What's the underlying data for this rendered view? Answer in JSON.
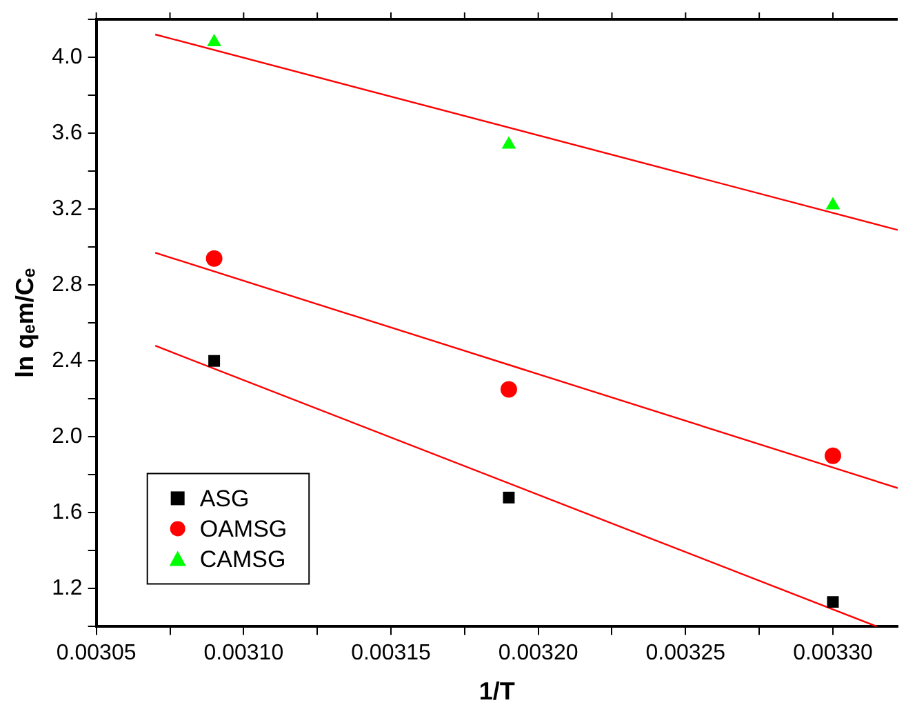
{
  "chart_data": {
    "type": "scatter",
    "xlabel": "1/T",
    "ylabel": "ln qₑm/Cₑ",
    "xlim": [
      0.00305,
      0.003322
    ],
    "xticks": [
      {
        "value": 0.00305,
        "label": "0.00305"
      },
      {
        "value": 0.003075,
        "label": null
      },
      {
        "value": 0.0031,
        "label": "0.00310"
      },
      {
        "value": 0.003125,
        "label": null
      },
      {
        "value": 0.00315,
        "label": "0.00315"
      },
      {
        "value": 0.003175,
        "label": null
      },
      {
        "value": 0.0032,
        "label": "0.00320"
      },
      {
        "value": 0.003225,
        "label": null
      },
      {
        "value": 0.00325,
        "label": "0.00325"
      },
      {
        "value": 0.003275,
        "label": null
      },
      {
        "value": 0.0033,
        "label": "0.00330"
      }
    ],
    "ylim": [
      1.0,
      4.2
    ],
    "yticks": [
      {
        "value": 1.0,
        "label": null
      },
      {
        "value": 1.2,
        "label": "1.2"
      },
      {
        "value": 1.4,
        "label": null
      },
      {
        "value": 1.6,
        "label": "1.6"
      },
      {
        "value": 1.8,
        "label": null
      },
      {
        "value": 2.0,
        "label": "2.0"
      },
      {
        "value": 2.2,
        "label": null
      },
      {
        "value": 2.4,
        "label": "2.4"
      },
      {
        "value": 2.6,
        "label": null
      },
      {
        "value": 2.8,
        "label": "2.8"
      },
      {
        "value": 3.0,
        "label": null
      },
      {
        "value": 3.2,
        "label": "3.2"
      },
      {
        "value": 3.4,
        "label": null
      },
      {
        "value": 3.6,
        "label": "3.6"
      },
      {
        "value": 3.8,
        "label": null
      },
      {
        "value": 4.0,
        "label": "4.0"
      },
      {
        "value": 4.2,
        "label": null
      }
    ],
    "grid": false,
    "legend": "bottom left",
    "series": [
      {
        "name": "ASG",
        "marker": "square",
        "color": "#000000",
        "x": [
          0.00309,
          0.00319,
          0.0033
        ],
        "values": [
          2.4,
          1.68,
          1.13
        ]
      },
      {
        "name": "OAMSG",
        "marker": "circle",
        "color": "#ff0000",
        "x": [
          0.00309,
          0.00319,
          0.0033
        ],
        "values": [
          2.94,
          2.25,
          1.9
        ]
      },
      {
        "name": "CAMSG",
        "marker": "triangle",
        "color": "#00ff00",
        "x": [
          0.00309,
          0.00319,
          0.0033
        ],
        "values": [
          4.08,
          3.54,
          3.22
        ]
      },
      {
        "type": "line",
        "marker": "none",
        "line_style": "solid",
        "color": "#ff0000",
        "x": [
          0.00307,
          0.003315
        ],
        "values": [
          2.48,
          1.0
        ]
      },
      {
        "type": "line",
        "marker": "none",
        "line_style": "solid",
        "color": "#ff0000",
        "x": [
          0.00307,
          0.003322
        ],
        "values": [
          2.97,
          1.73
        ]
      },
      {
        "type": "line",
        "marker": "none",
        "line_style": "solid",
        "color": "#ff0000",
        "x": [
          0.00307,
          0.003322
        ],
        "values": [
          4.12,
          3.09
        ]
      }
    ]
  }
}
